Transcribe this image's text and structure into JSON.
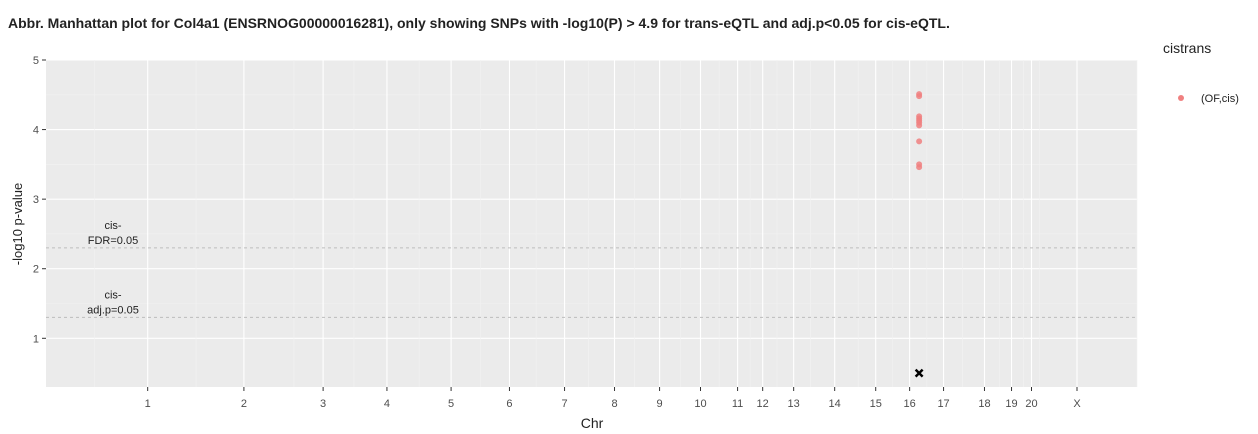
{
  "chart_data": {
    "type": "scatter",
    "title": "Abbr. Manhattan plot for Col4a1 (ENSRNOG00000016281), only showing SNPs with -log10(P) > 4.9 for trans-eQTL and adj.p<0.05 for cis-eQTL.",
    "xlabel": "Chr",
    "ylabel": "-log10 p-value",
    "ylim": [
      0.3,
      5.0
    ],
    "y_ticks": [
      1,
      2,
      3,
      4,
      5
    ],
    "y_tick_labels": [
      "1",
      "2",
      "3",
      "4",
      "5"
    ],
    "x_ticks": [
      {
        "label": "1",
        "pos": 0.0932
      },
      {
        "label": "2",
        "pos": 0.1814
      },
      {
        "label": "3",
        "pos": 0.254
      },
      {
        "label": "4",
        "pos": 0.3125
      },
      {
        "label": "5",
        "pos": 0.3713
      },
      {
        "label": "6",
        "pos": 0.4248
      },
      {
        "label": "7",
        "pos": 0.4753
      },
      {
        "label": "8",
        "pos": 0.5211
      },
      {
        "label": "9",
        "pos": 0.5624
      },
      {
        "label": "10",
        "pos": 0.5999
      },
      {
        "label": "11",
        "pos": 0.6339
      },
      {
        "label": "12",
        "pos": 0.6569
      },
      {
        "label": "13",
        "pos": 0.6853
      },
      {
        "label": "14",
        "pos": 0.7229
      },
      {
        "label": "15",
        "pos": 0.7605
      },
      {
        "label": "16",
        "pos": 0.7916
      },
      {
        "label": "17",
        "pos": 0.8227
      },
      {
        "label": "18",
        "pos": 0.8602
      },
      {
        "label": "19",
        "pos": 0.885
      },
      {
        "label": "20",
        "pos": 0.9033
      },
      {
        "label": "X",
        "pos": 0.945
      }
    ],
    "x_minor_grid": [
      0.0445,
      0.1375,
      0.2273,
      0.2823,
      0.3419,
      0.3983,
      0.4492,
      0.4973,
      0.5395,
      0.5816,
      0.6169,
      0.6454,
      0.67,
      0.7009,
      0.7445,
      0.7761,
      0.8073,
      0.84,
      0.874,
      0.896,
      0.9106,
      1.0
    ],
    "hlines": [
      {
        "y": 2.3,
        "label": "cis-\nFDR=0.05",
        "style": "dashed"
      },
      {
        "y": 1.3,
        "label": "cis-\nadj.p=0.05",
        "style": "dashed"
      }
    ],
    "series": [
      {
        "name": "(OF,cis)",
        "color": "#f08080",
        "points": [
          {
            "x": 0.8003,
            "y": 4.51
          },
          {
            "x": 0.8003,
            "y": 4.48
          },
          {
            "x": 0.8003,
            "y": 4.19
          },
          {
            "x": 0.8003,
            "y": 4.16
          },
          {
            "x": 0.8003,
            "y": 4.13
          },
          {
            "x": 0.8003,
            "y": 4.1
          },
          {
            "x": 0.8003,
            "y": 4.06
          },
          {
            "x": 0.8003,
            "y": 3.83
          },
          {
            "x": 0.8003,
            "y": 3.5
          },
          {
            "x": 0.8003,
            "y": 3.46
          }
        ]
      }
    ],
    "markers": [
      {
        "type": "cross",
        "x": 0.8003,
        "y": 0.5,
        "color": "#000000"
      }
    ],
    "legend": {
      "title": "cistrans",
      "position": "right",
      "entries": [
        "(OF,cis)"
      ]
    },
    "panel_background": "#ebebeb",
    "grid": true
  }
}
